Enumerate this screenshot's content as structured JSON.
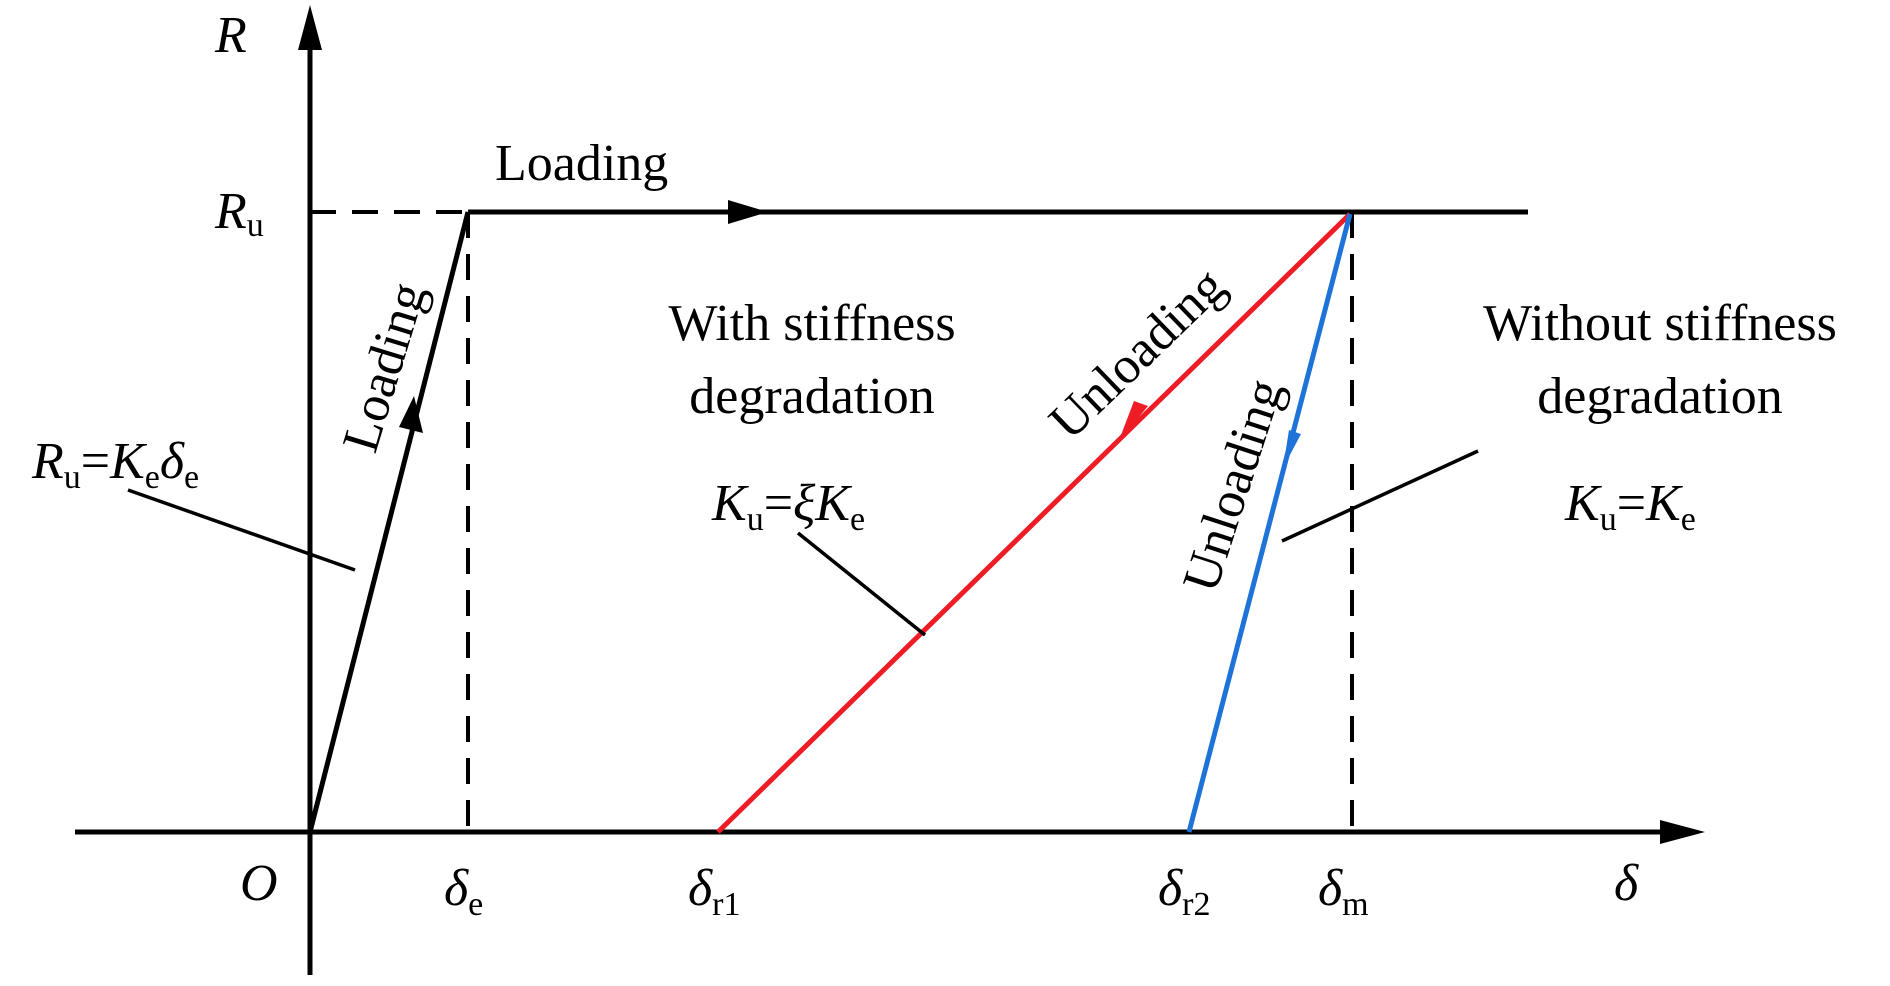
{
  "axes": {
    "y_label": "R",
    "x_label": "δ",
    "origin": "O"
  },
  "ticks": {
    "Ru": {
      "base": "R",
      "sub": "u"
    },
    "delta_e": {
      "base": "δ",
      "sub": "e"
    },
    "delta_r1": {
      "base": "δ",
      "sub": "r1"
    },
    "delta_r2": {
      "base": "δ",
      "sub": "r2"
    },
    "delta_m": {
      "base": "δ",
      "sub": "m"
    }
  },
  "labels": {
    "loading_horizontal": "Loading",
    "loading_rising": "Loading",
    "unloading_red": "Unloading",
    "unloading_blue": "Unloading",
    "with_stiffness_line1": "With stiffness",
    "with_stiffness_line2": "degradation",
    "without_stiffness_line1": "Without stiffness",
    "without_stiffness_line2": "degradation"
  },
  "equations": {
    "elastic": {
      "R": "R",
      "Rsub": "u",
      "eq": "=",
      "K": "K",
      "Ksub": "e",
      "d": "δ",
      "dsub": "e"
    },
    "with_deg": {
      "K": "K",
      "Ksub": "u",
      "eq": "=",
      "xi": "ξ",
      "K2": "K",
      "K2sub": "e"
    },
    "without_deg": {
      "K": "K",
      "Ksub": "u",
      "eq": "=",
      "K2": "K",
      "K2sub": "e"
    }
  },
  "colors": {
    "axis": "#000000",
    "with_degradation": "#ee1c25",
    "without_degradation": "#1e73d8"
  }
}
